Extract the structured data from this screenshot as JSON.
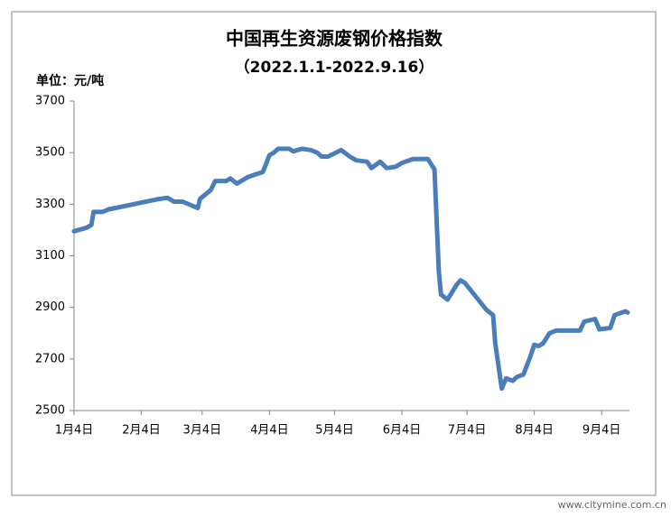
{
  "chart_data": {
    "type": "line",
    "title": "中国再生资源废钢价格指数",
    "subtitle": "（2022.1.1-2022.9.16）",
    "y_label": "单位：元/吨",
    "watermark": "www.citymine.com.cn",
    "x": [
      "1月4日",
      "1月10日",
      "1月12日",
      "1月13日",
      "1月17日",
      "1月20日",
      "2月12日",
      "2月16日",
      "2月19日",
      "2月23日",
      "3月2日",
      "3月3日",
      "3月8日",
      "3月10日",
      "3月15日",
      "3月17日",
      "3月20日",
      "3月25日",
      "4月1日",
      "4月4日",
      "4月6日",
      "4月8日",
      "4月13日",
      "4月15日",
      "4月19日",
      "4月23日",
      "4月26日",
      "4月28日",
      "5月1日",
      "5月7日",
      "5月11日",
      "5月14日",
      "5月19日",
      "5月21日",
      "5月25日",
      "5月28日",
      "6月1日",
      "6月4日",
      "6月9日",
      "6月16日",
      "6月19日",
      "6月21日",
      "6月22日",
      "6月25日",
      "6月29日",
      "7月1日",
      "7月3日",
      "7月13日",
      "7月16日",
      "7月17日",
      "7月20日",
      "7月22日",
      "7月25日",
      "7月27日",
      "7月30日",
      "8月2日",
      "8月4日",
      "8月6日",
      "8月8日",
      "8月11日",
      "8月14日",
      "8月25日",
      "8月27日",
      "9月1日",
      "9月3日",
      "9月8日",
      "9月10日",
      "9月15日",
      "9月16日"
    ],
    "series": [
      {
        "name": "废钢价格指数",
        "color": "#4a7ebb",
        "values": [
          3195,
          3210,
          3220,
          3270,
          3270,
          3280,
          3320,
          3325,
          3310,
          3310,
          3285,
          3320,
          3355,
          3390,
          3390,
          3400,
          3380,
          3405,
          3425,
          3490,
          3500,
          3515,
          3515,
          3505,
          3515,
          3510,
          3500,
          3485,
          3485,
          3510,
          3485,
          3470,
          3465,
          3440,
          3465,
          3440,
          3445,
          3460,
          3475,
          3475,
          3435,
          3040,
          2950,
          2930,
          2985,
          3005,
          2995,
          2890,
          2870,
          2760,
          2585,
          2625,
          2615,
          2630,
          2640,
          2705,
          2755,
          2750,
          2760,
          2800,
          2810,
          2810,
          2845,
          2855,
          2815,
          2820,
          2870,
          2885,
          2880
        ]
      }
    ],
    "xlim": [
      "1月4日",
      "9月16日"
    ],
    "xticks": [
      "1月4日",
      "2月4日",
      "3月4日",
      "4月4日",
      "5月4日",
      "6月4日",
      "7月4日",
      "8月4日",
      "9月4日"
    ],
    "ylim": [
      2500,
      3700
    ],
    "yticks": [
      2500,
      2700,
      2900,
      3100,
      3300,
      3500,
      3700
    ],
    "grid": false
  }
}
